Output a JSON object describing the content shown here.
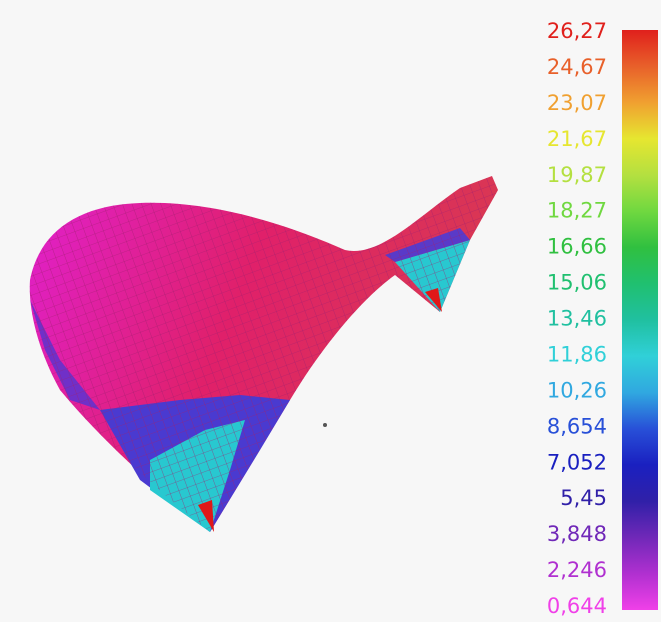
{
  "legend": {
    "items": [
      {
        "label": "26,27",
        "color": "#e0201c"
      },
      {
        "label": "24,67",
        "color": "#e8602a"
      },
      {
        "label": "23,07",
        "color": "#f0a030"
      },
      {
        "label": "21,67",
        "color": "#e6e630"
      },
      {
        "label": "19,87",
        "color": "#b4e040"
      },
      {
        "label": "18,27",
        "color": "#70d840"
      },
      {
        "label": "16,66",
        "color": "#30c040"
      },
      {
        "label": "15,06",
        "color": "#20c070"
      },
      {
        "label": "13,46",
        "color": "#20c0a0"
      },
      {
        "label": "11,86",
        "color": "#30d0d8"
      },
      {
        "label": "10,26",
        "color": "#30a8e0"
      },
      {
        "label": "8,654",
        "color": "#2850d8"
      },
      {
        "label": "7,052",
        "color": "#1a20c0"
      },
      {
        "label": "5,45",
        "color": "#3020a8"
      },
      {
        "label": "3,848",
        "color": "#7028b8"
      },
      {
        "label": "2,246",
        "color": "#b030d0"
      },
      {
        "label": "0,644",
        "color": "#f040e8"
      }
    ]
  }
}
